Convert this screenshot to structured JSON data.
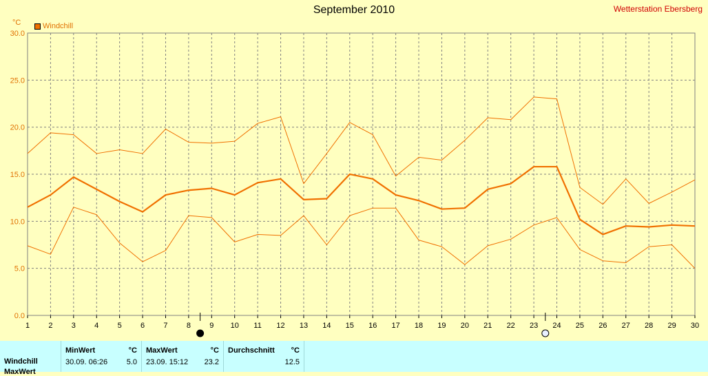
{
  "header": {
    "title": "September 2010",
    "station": "Wetterstation Ebersberg",
    "unit": "°C",
    "legend_label": "Windchill"
  },
  "colors": {
    "background": "#ffffc0",
    "series": "#f07000",
    "grid": "#808080",
    "tick_label": "#e07000",
    "station": "#d00000",
    "stats_bg": "#c8ffff"
  },
  "chart_data": {
    "type": "line",
    "ylim": [
      0,
      30
    ],
    "yticks": [
      "0.0",
      "5.0",
      "10.0",
      "15.0",
      "20.0",
      "25.0",
      "30.0"
    ],
    "x": [
      1,
      2,
      3,
      4,
      5,
      6,
      7,
      8,
      9,
      10,
      11,
      12,
      13,
      14,
      15,
      16,
      17,
      18,
      19,
      20,
      21,
      22,
      23,
      24,
      25,
      26,
      27,
      28,
      29,
      30
    ],
    "grid": true,
    "legend_position": "top-left",
    "series": [
      {
        "name": "Windchill",
        "role": "average",
        "values": [
          11.5,
          12.8,
          14.7,
          13.4,
          12.1,
          11.0,
          12.8,
          13.3,
          13.5,
          12.8,
          14.1,
          14.5,
          12.3,
          12.4,
          15.0,
          14.5,
          12.8,
          12.2,
          11.3,
          11.4,
          13.4,
          14.0,
          15.8,
          15.8,
          10.2,
          8.6,
          9.5,
          9.4,
          9.6,
          9.5
        ]
      },
      {
        "role": "maximum",
        "values": [
          17.2,
          19.4,
          19.2,
          17.2,
          17.6,
          17.2,
          19.8,
          18.4,
          18.3,
          18.5,
          20.4,
          21.1,
          14.0,
          17.2,
          20.5,
          19.2,
          14.8,
          16.8,
          16.5,
          18.6,
          21.0,
          20.8,
          23.2,
          23.0,
          13.6,
          11.8,
          14.5,
          11.9,
          13.1,
          14.4
        ]
      },
      {
        "role": "minimum",
        "values": [
          7.4,
          6.5,
          11.5,
          10.7,
          7.7,
          5.7,
          6.9,
          10.6,
          10.4,
          7.8,
          8.6,
          8.5,
          10.6,
          7.5,
          10.6,
          11.4,
          11.4,
          8.0,
          7.3,
          5.4,
          7.4,
          8.1,
          9.6,
          10.4,
          7.0,
          5.8,
          5.6,
          7.3,
          7.5,
          5.0
        ]
      }
    ],
    "markers": [
      {
        "label": "new-moon",
        "x": 8.5
      },
      {
        "label": "full-moon",
        "x": 23.5
      }
    ]
  },
  "stats": {
    "row_label": "Windchill",
    "row2_label": "MaxWert",
    "min": {
      "header": "MinWert",
      "unit": "°C",
      "time": "30.09.  06:26",
      "value": "5.0"
    },
    "max": {
      "header": "MaxWert",
      "unit": "°C",
      "time": "23.09.  15:12",
      "value": "23.2"
    },
    "avg": {
      "header": "Durchschnitt",
      "unit": "°C",
      "value": "12.5"
    }
  }
}
